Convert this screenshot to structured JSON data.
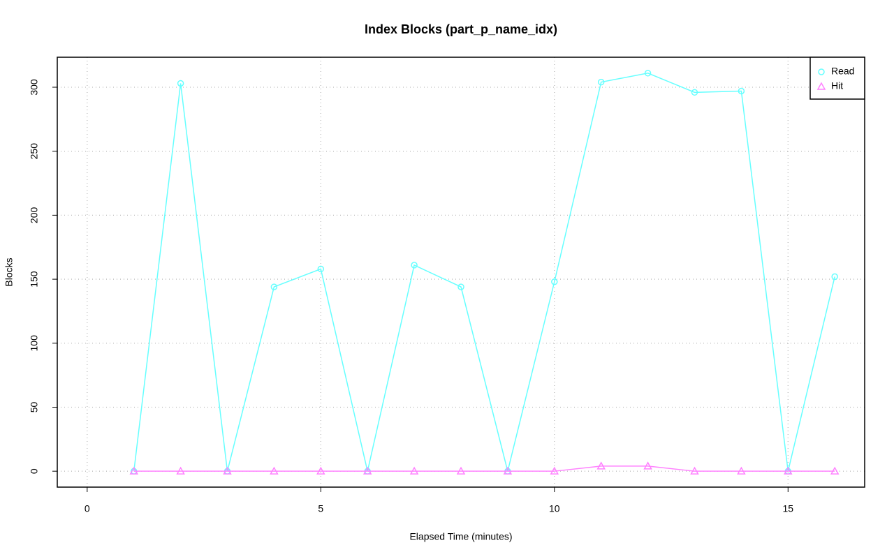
{
  "chart_data": {
    "type": "line",
    "title": "Index Blocks (part_p_name_idx)",
    "x_label": "Elapsed Time (minutes)",
    "y_label": "Blocks",
    "x": [
      1,
      2,
      3,
      4,
      5,
      6,
      7,
      8,
      9,
      10,
      11,
      12,
      13,
      14,
      15,
      16
    ],
    "series": [
      {
        "name": "Read",
        "color": "#66ffff",
        "marker": "circle",
        "values": [
          0,
          303,
          0,
          144,
          158,
          0,
          161,
          144,
          0,
          148,
          304,
          311,
          296,
          297,
          0,
          152
        ]
      },
      {
        "name": "Hit",
        "color": "#ff80ff",
        "marker": "triangle",
        "values": [
          0,
          0,
          0,
          0,
          0,
          0,
          0,
          0,
          0,
          0,
          4,
          4,
          0,
          0,
          0,
          0
        ]
      }
    ],
    "xlim": [
      -0.64,
      16.64
    ],
    "ylim": [
      -12.44,
      323.44
    ],
    "xticks": [
      0,
      5,
      10,
      15
    ],
    "yticks": [
      0,
      50,
      100,
      150,
      200,
      250,
      300
    ],
    "grid": true,
    "legend": "top-right"
  }
}
